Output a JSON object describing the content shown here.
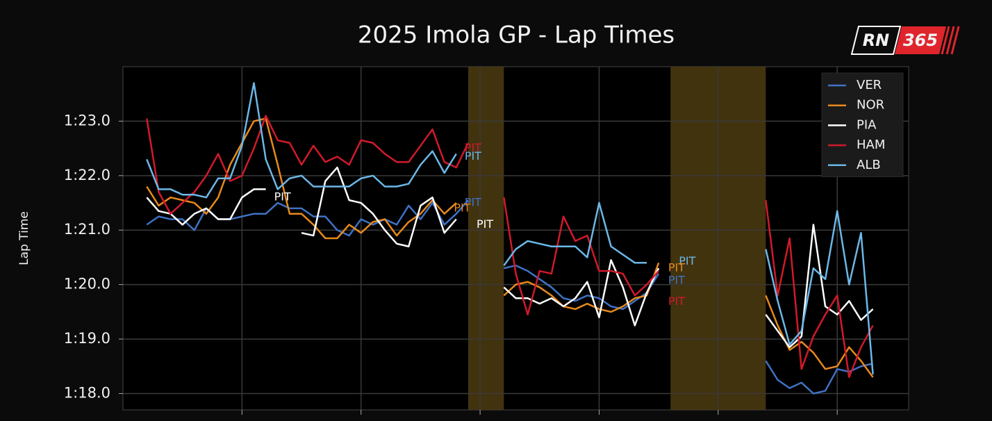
{
  "chart_data": {
    "type": "line",
    "title": "2025 Imola GP - Lap Times",
    "ylabel": "Lap Time",
    "x": [
      2,
      3,
      4,
      5,
      6,
      7,
      8,
      9,
      10,
      11,
      12,
      13,
      14,
      15,
      16,
      17,
      18,
      19,
      20,
      21,
      22,
      23,
      24,
      25,
      26,
      27,
      28,
      29,
      30,
      31,
      32,
      33,
      34,
      35,
      36,
      37,
      38,
      39,
      40,
      41,
      42,
      43,
      44,
      45,
      46,
      47,
      48,
      49,
      50,
      51,
      52,
      53,
      54,
      55,
      56,
      57,
      58,
      59,
      60,
      61,
      62,
      63
    ],
    "xlim": [
      0,
      66
    ],
    "xticks": [
      10,
      20,
      30,
      40,
      50,
      60
    ],
    "ylim": [
      77.7,
      84.0
    ],
    "yticks": [
      {
        "value": 78,
        "label": "1:18.0"
      },
      {
        "value": 79,
        "label": "1:19.0"
      },
      {
        "value": 80,
        "label": "1:20.0"
      },
      {
        "value": 81,
        "label": "1:21.0"
      },
      {
        "value": 82,
        "label": "1:22.0"
      },
      {
        "value": 83,
        "label": "1:23.0"
      }
    ],
    "grid": true,
    "legend": "upper right",
    "shaded": [
      [
        29,
        32
      ],
      [
        46,
        54
      ]
    ],
    "shaded_color": "#4d3c12",
    "series": [
      {
        "name": "VER",
        "color": "#3f72c4",
        "values": [
          81.1,
          81.25,
          81.2,
          81.2,
          81.0,
          81.4,
          81.2,
          81.2,
          81.25,
          81.3,
          81.3,
          81.5,
          81.4,
          81.4,
          81.25,
          81.25,
          81.0,
          80.9,
          81.2,
          81.1,
          81.2,
          81.1,
          81.45,
          81.2,
          81.5,
          81.1,
          81.3,
          81.55,
          null,
          null,
          80.3,
          80.35,
          80.25,
          80.1,
          79.95,
          79.75,
          79.7,
          79.8,
          79.75,
          79.6,
          79.55,
          79.7,
          79.85,
          80.2,
          null,
          null,
          null,
          null,
          null,
          null,
          null,
          null,
          78.6,
          78.25,
          78.1,
          78.2,
          78.0,
          78.05,
          78.45,
          78.4,
          78.5,
          78.55
        ]
      },
      {
        "name": "NOR",
        "color": "#e8891c",
        "values": [
          81.8,
          81.45,
          81.6,
          81.55,
          81.5,
          81.3,
          81.6,
          82.2,
          82.6,
          83.0,
          83.05,
          82.2,
          81.3,
          81.3,
          81.1,
          80.85,
          80.85,
          81.1,
          80.95,
          81.15,
          81.2,
          80.9,
          81.15,
          81.3,
          81.55,
          81.3,
          81.5,
          null,
          null,
          null,
          79.8,
          80.0,
          80.05,
          79.95,
          79.8,
          79.6,
          79.55,
          79.65,
          79.55,
          79.5,
          79.6,
          79.75,
          79.8,
          80.4,
          null,
          null,
          null,
          null,
          null,
          null,
          null,
          null,
          79.8,
          79.25,
          78.8,
          78.95,
          78.75,
          78.45,
          78.5,
          78.85,
          78.6,
          78.3
        ]
      },
      {
        "name": "PIA",
        "color": "#ffffff",
        "values": [
          81.6,
          81.35,
          81.3,
          81.1,
          81.3,
          81.4,
          81.2,
          81.2,
          81.6,
          81.75,
          81.75,
          null,
          null,
          80.95,
          80.9,
          81.9,
          82.15,
          81.55,
          81.5,
          81.3,
          81.0,
          80.75,
          80.7,
          81.45,
          81.6,
          80.95,
          81.2,
          null,
          null,
          null,
          79.95,
          79.75,
          79.75,
          79.65,
          79.75,
          79.6,
          79.75,
          80.05,
          79.4,
          80.45,
          79.95,
          79.25,
          79.85,
          80.3,
          null,
          null,
          null,
          null,
          null,
          null,
          null,
          null,
          79.45,
          79.15,
          78.85,
          79.05,
          81.1,
          79.6,
          79.45,
          79.7,
          79.35,
          79.55
        ]
      },
      {
        "name": "HAM",
        "color": "#d11a2a",
        "values": [
          83.05,
          81.7,
          81.3,
          81.5,
          81.7,
          82.0,
          82.4,
          81.9,
          82.0,
          82.5,
          83.1,
          82.65,
          82.6,
          82.2,
          82.55,
          82.25,
          82.35,
          82.2,
          82.65,
          82.6,
          82.4,
          82.25,
          82.25,
          82.55,
          82.85,
          82.25,
          82.15,
          82.6,
          null,
          null,
          81.6,
          80.2,
          79.45,
          80.25,
          80.2,
          81.25,
          80.8,
          80.9,
          80.25,
          80.25,
          80.2,
          79.8,
          80.0,
          80.25,
          null,
          null,
          null,
          null,
          null,
          null,
          null,
          null,
          81.55,
          79.8,
          80.85,
          78.45,
          79.05,
          79.45,
          79.8,
          78.3,
          78.85,
          79.25
        ]
      },
      {
        "name": "ALB",
        "color": "#6cb8e8",
        "values": [
          82.3,
          81.75,
          81.75,
          81.65,
          81.65,
          81.6,
          81.95,
          81.95,
          82.55,
          83.7,
          82.3,
          81.75,
          81.95,
          82.0,
          81.8,
          81.8,
          81.8,
          81.8,
          81.95,
          82.0,
          81.8,
          81.8,
          81.85,
          82.2,
          82.45,
          82.05,
          82.4,
          null,
          null,
          null,
          80.35,
          80.65,
          80.8,
          80.75,
          80.7,
          80.7,
          80.7,
          80.5,
          81.5,
          80.7,
          80.55,
          80.4,
          80.4,
          null,
          null,
          null,
          null,
          null,
          null,
          null,
          null,
          null,
          80.65,
          79.7,
          78.9,
          79.15,
          80.3,
          80.1,
          81.35,
          80.0,
          80.95,
          78.35
        ]
      }
    ],
    "annotations": [
      {
        "text": "PIT",
        "x": 28.7,
        "y": 82.5,
        "series": 3
      },
      {
        "text": "PIT",
        "x": 28.7,
        "y": 82.35,
        "series": 4
      },
      {
        "text": "PIT",
        "x": 28.7,
        "y": 81.5,
        "series": 0
      },
      {
        "text": "PIT",
        "x": 27.8,
        "y": 81.4,
        "series": 1
      },
      {
        "text": "PIT",
        "x": 29.7,
        "y": 81.1,
        "series": 2
      },
      {
        "text": "PIT",
        "x": 12.7,
        "y": 81.6,
        "series": 2
      },
      {
        "text": "PIT",
        "x": 46.7,
        "y": 80.42,
        "series": 4
      },
      {
        "text": "PIT",
        "x": 45.8,
        "y": 80.3,
        "series": 1
      },
      {
        "text": "PIT",
        "x": 45.8,
        "y": 80.07,
        "series": 0
      },
      {
        "text": "PIT",
        "x": 45.8,
        "y": 79.68,
        "series": 3
      }
    ]
  },
  "logo": {
    "left": "RN",
    "right": "365"
  }
}
